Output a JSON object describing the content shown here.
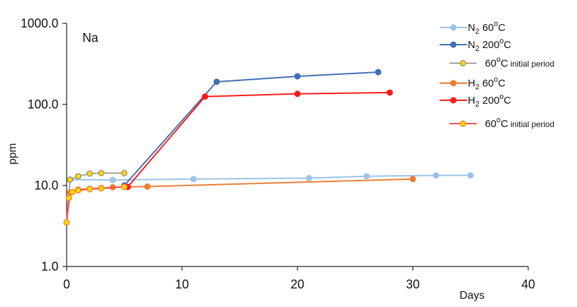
{
  "chart_data": {
    "type": "line",
    "title": "",
    "panel_label": "Na",
    "xlabel": "Days",
    "ylabel": "ppm",
    "xlim": [
      0,
      40
    ],
    "ylim": [
      1,
      1000
    ],
    "yscale": "log",
    "x_ticks": [
      0,
      10,
      20,
      30,
      40
    ],
    "x_tick_labels": [
      "0",
      "10",
      "20",
      "30",
      "40"
    ],
    "y_ticks": [
      1,
      10,
      100,
      1000
    ],
    "y_tick_labels": [
      "1.0",
      "10.0",
      "100.0",
      "1000.0"
    ],
    "grid": false,
    "legend_position": "top-right",
    "series": [
      {
        "name": "N2 60°C",
        "color": "#9dc3e6",
        "marker_fill": "#9dc3e6",
        "points": [
          [
            0,
            3.5
          ],
          [
            0.3,
            11.8
          ],
          [
            4,
            11.7
          ],
          [
            11,
            12.0
          ],
          [
            21,
            12.3
          ],
          [
            26,
            13.0
          ],
          [
            32,
            13.3
          ],
          [
            35,
            13.3
          ]
        ]
      },
      {
        "name": "N2 200°C",
        "color": "#3f6fb5",
        "marker_fill": "#3f6fb5",
        "points": [
          [
            5,
            10.0
          ],
          [
            13,
            190
          ],
          [
            20,
            222
          ],
          [
            27,
            250
          ]
        ]
      },
      {
        "name": "60°C initial period",
        "color": "#a5a5a5",
        "marker_fill": "#ffd700",
        "marker_stroke": "#8c8c8c",
        "points": [
          [
            0,
            3.5
          ],
          [
            0.3,
            11.8
          ],
          [
            1,
            13.0
          ],
          [
            2,
            14.0
          ],
          [
            3,
            14.2
          ],
          [
            5,
            14.2
          ]
        ]
      },
      {
        "name": "H2 60°C",
        "color": "#ed7d31",
        "marker_fill": "#ed7d31",
        "points": [
          [
            0,
            3.5
          ],
          [
            0.3,
            8.2
          ],
          [
            1,
            8.9
          ],
          [
            2,
            9.1
          ],
          [
            3,
            9.3
          ],
          [
            4,
            9.5
          ],
          [
            5,
            9.6
          ],
          [
            7,
            9.7
          ],
          [
            30,
            12.0
          ]
        ]
      },
      {
        "name": "H2 200°C",
        "color": "#ff1a1a",
        "marker_fill": "#ff1a1a",
        "points": [
          [
            5.3,
            9.6
          ],
          [
            12,
            125
          ],
          [
            20,
            135
          ],
          [
            28,
            140
          ]
        ]
      },
      {
        "name": "60°C initial period",
        "color": "#ff4d4d",
        "marker_fill": "#ffd700",
        "marker_stroke": "#ed7d31",
        "points": [
          [
            0,
            3.5
          ],
          [
            0.2,
            7.0
          ],
          [
            0.5,
            8.3
          ],
          [
            1,
            8.7
          ],
          [
            2,
            9.0
          ],
          [
            3,
            9.2
          ],
          [
            5,
            9.6
          ]
        ]
      }
    ],
    "legend": [
      {
        "main": "N",
        "sub": "2",
        "tail": "  60",
        "sup": "o",
        "end": "C"
      },
      {
        "main": "N",
        "sub": "2",
        "tail": "  200",
        "sup": "o",
        "end": "C"
      },
      {
        "main": "60",
        "sup": "o",
        "end": "C",
        "small": " initial period"
      },
      {
        "main": "H",
        "sub": "2",
        "tail": "  60",
        "sup": "o",
        "end": "C"
      },
      {
        "main": "H",
        "sub": "2",
        "tail": "   200",
        "sup": "o",
        "end": "C"
      },
      {
        "main": "60",
        "sup": "o",
        "end": "C",
        "small": " initial period"
      }
    ]
  }
}
